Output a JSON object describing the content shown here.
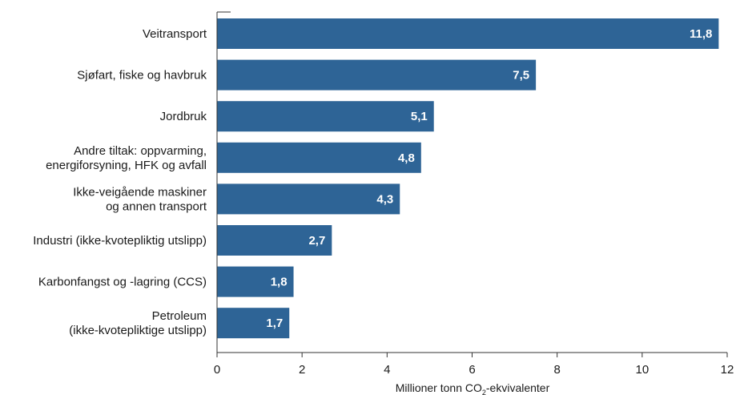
{
  "chart_data": {
    "type": "bar",
    "orientation": "horizontal",
    "categories": [
      [
        "Veitransport"
      ],
      [
        "Sjøfart, fiske og havbruk"
      ],
      [
        "Jordbruk"
      ],
      [
        "Andre tiltak: oppvarming,",
        "energiforsyning, HFK og avfall"
      ],
      [
        "Ikke-veigående maskiner",
        "og annen transport"
      ],
      [
        "Industri (ikke-kvotepliktig utslipp)"
      ],
      [
        "Karbonfangst og -lagring (CCS)"
      ],
      [
        "Petroleum",
        "(ikke-kvotepliktige utslipp)"
      ]
    ],
    "values": [
      11.8,
      7.5,
      5.1,
      4.8,
      4.3,
      2.7,
      1.8,
      1.7
    ],
    "value_labels": [
      "11,8",
      "7,5",
      "5,1",
      "4,8",
      "4,3",
      "2,7",
      "1,8",
      "1,7"
    ],
    "xlim": [
      0,
      12
    ],
    "xticks": [
      0,
      2,
      4,
      6,
      8,
      10,
      12
    ],
    "xlabel": {
      "main": "Millioner tonn CO",
      "sub": "2",
      "rest": "-ekvivalenter"
    },
    "grid": false,
    "bar_color": "#2e6496"
  }
}
